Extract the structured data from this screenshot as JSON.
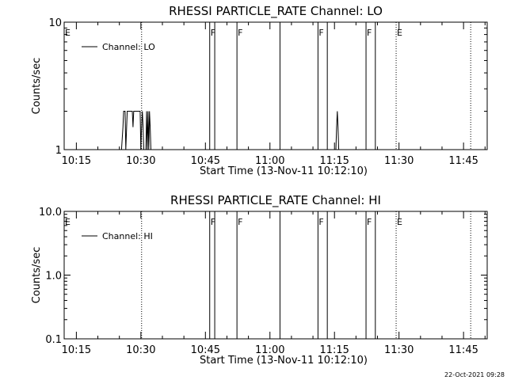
{
  "chart_data": [
    {
      "type": "line",
      "title": "RHESSI PARTICLE_RATE Channel: LO",
      "xlabel": "Start Time (13-Nov-11 10:12:10)",
      "ylabel": "Counts/sec",
      "y_scale": "log",
      "ylim": [
        1,
        10
      ],
      "xlim": [
        "10:12:10",
        "11:50:30"
      ],
      "y_ticks": [
        {
          "value": 1,
          "label": "1"
        },
        {
          "value": 10,
          "label": "10"
        }
      ],
      "x_ticks": [
        "10:15",
        "10:30",
        "10:45",
        "11:00",
        "11:15",
        "11:30",
        "11:45"
      ],
      "grid": false,
      "legend": {
        "position": "top-left",
        "entries": [
          "Channel: LO"
        ]
      },
      "series": [
        {
          "name": "Channel: LO",
          "x": [
            "10:12:10",
            "10:25:30",
            "10:25:50",
            "10:26:00",
            "10:26:20",
            "10:26:30",
            "10:26:50",
            "10:27:00",
            "10:28:00",
            "10:28:10",
            "10:28:20",
            "10:28:30",
            "10:28:40",
            "10:28:50",
            "10:29:40",
            "10:29:50",
            "10:30:00",
            "10:30:10",
            "10:30:20",
            "10:30:30",
            "10:30:40",
            "10:31:10",
            "10:31:20",
            "10:31:30",
            "10:31:40",
            "10:31:50",
            "10:32:00",
            "10:32:10",
            "10:32:20",
            "11:15:20",
            "11:15:30",
            "11:15:40",
            "11:15:50",
            "11:16:00",
            "11:50:30"
          ],
          "values": [
            1,
            1,
            1.5,
            2,
            2,
            1,
            2,
            2,
            2,
            1.5,
            2,
            2,
            2,
            2,
            2,
            2,
            1,
            1.5,
            2,
            1.5,
            1,
            1,
            2,
            1,
            2,
            1,
            2,
            1.5,
            1,
            1,
            1.5,
            2,
            1.5,
            1,
            1
          ]
        }
      ],
      "annotations": [
        {
          "type": "vertical_solid",
          "x": "10:46:00"
        },
        {
          "type": "vertical_solid",
          "x": "10:47:10"
        },
        {
          "type": "vertical_solid",
          "x": "10:52:20"
        },
        {
          "type": "vertical_solid",
          "x": "11:02:20"
        },
        {
          "type": "vertical_solid",
          "x": "11:11:10"
        },
        {
          "type": "vertical_solid",
          "x": "11:13:20"
        },
        {
          "type": "vertical_solid",
          "x": "11:22:20"
        },
        {
          "type": "vertical_solid",
          "x": "11:24:30"
        },
        {
          "type": "vertical_dotted",
          "x": "10:30:10"
        },
        {
          "type": "vertical_dotted",
          "x": "11:29:20"
        },
        {
          "type": "vertical_dotted",
          "x": "11:46:40"
        },
        {
          "type": "label",
          "x": "10:12:10",
          "text": "E"
        },
        {
          "type": "label",
          "x": "10:46:00",
          "text": "F"
        },
        {
          "type": "label",
          "x": "10:52:20",
          "text": "F"
        },
        {
          "type": "label",
          "x": "11:11:10",
          "text": "F"
        },
        {
          "type": "label",
          "x": "11:22:20",
          "text": "F"
        },
        {
          "type": "label",
          "x": "11:29:20",
          "text": "E"
        }
      ]
    },
    {
      "type": "line",
      "title": "RHESSI PARTICLE_RATE Channel: HI",
      "xlabel": "Start Time (13-Nov-11 10:12:10)",
      "ylabel": "Counts/sec",
      "y_scale": "log",
      "ylim": [
        0.1,
        10
      ],
      "xlim": [
        "10:12:10",
        "11:50:30"
      ],
      "y_ticks": [
        {
          "value": 0.1,
          "label": "0.1"
        },
        {
          "value": 1,
          "label": "1.0"
        },
        {
          "value": 10,
          "label": "10.0"
        }
      ],
      "x_ticks": [
        "10:15",
        "10:30",
        "10:45",
        "11:00",
        "11:15",
        "11:30",
        "11:45"
      ],
      "grid": false,
      "legend": {
        "position": "top-left",
        "entries": [
          "Channel: HI"
        ]
      },
      "series": [
        {
          "name": "Channel: HI",
          "x": [],
          "values": []
        }
      ],
      "annotations": [
        {
          "type": "vertical_solid",
          "x": "10:46:00"
        },
        {
          "type": "vertical_solid",
          "x": "10:47:10"
        },
        {
          "type": "vertical_solid",
          "x": "10:52:20"
        },
        {
          "type": "vertical_solid",
          "x": "11:02:20"
        },
        {
          "type": "vertical_solid",
          "x": "11:11:10"
        },
        {
          "type": "vertical_solid",
          "x": "11:13:20"
        },
        {
          "type": "vertical_solid",
          "x": "11:22:20"
        },
        {
          "type": "vertical_solid",
          "x": "11:24:30"
        },
        {
          "type": "vertical_dotted",
          "x": "10:30:10"
        },
        {
          "type": "vertical_dotted",
          "x": "11:29:20"
        },
        {
          "type": "vertical_dotted",
          "x": "11:46:40"
        },
        {
          "type": "label",
          "x": "10:12:10",
          "text": "E"
        },
        {
          "type": "label",
          "x": "10:46:00",
          "text": "F"
        },
        {
          "type": "label",
          "x": "10:52:20",
          "text": "F"
        },
        {
          "type": "label",
          "x": "11:11:10",
          "text": "F"
        },
        {
          "type": "label",
          "x": "11:22:20",
          "text": "F"
        },
        {
          "type": "label",
          "x": "11:29:20",
          "text": "E"
        }
      ]
    }
  ],
  "footer": {
    "timestamp": "22-Oct-2021 09:28"
  }
}
